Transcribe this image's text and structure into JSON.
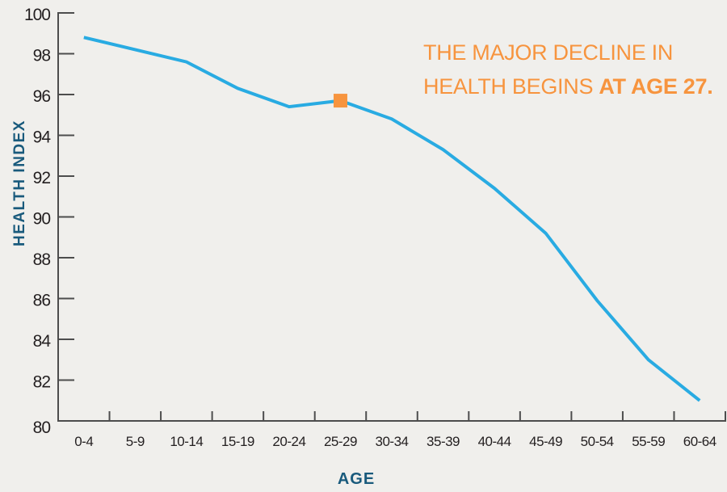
{
  "axes": {
    "y_label": "HEALTH INDEX",
    "x_label": "AGE"
  },
  "annotation": {
    "line1": "THE MAJOR DECLINE IN",
    "line2_prefix": "HEALTH BEGINS ",
    "line2_bold": "AT AGE 27."
  },
  "colors": {
    "background": "#F0EFEC",
    "line": "#29ABE2",
    "marker": "#F7943E",
    "annotation_text": "#F7943E",
    "axis_title": "#195A7C",
    "tick_text": "#231F20",
    "axis": "#4D4D4D"
  },
  "chart_data": {
    "type": "line",
    "title": "THE MAJOR DECLINE IN HEALTH BEGINS AT AGE 27.",
    "xlabel": "AGE",
    "ylabel": "HEALTH INDEX",
    "categories": [
      "0-4",
      "5-9",
      "10-14",
      "15-19",
      "20-24",
      "25-29",
      "30-34",
      "35-39",
      "40-44",
      "45-49",
      "50-54",
      "55-59",
      "60-64"
    ],
    "values": [
      98.8,
      98.2,
      97.6,
      96.3,
      95.4,
      95.7,
      94.8,
      93.3,
      91.4,
      89.2,
      85.9,
      83.0,
      81.0
    ],
    "highlight": {
      "category": "25-29",
      "value": 95.7,
      "marker": "orange-square"
    },
    "ylim": [
      80,
      100
    ],
    "y_ticks": [
      80,
      82,
      84,
      86,
      88,
      90,
      92,
      94,
      96,
      98,
      100
    ],
    "grid": false,
    "legend": false
  }
}
